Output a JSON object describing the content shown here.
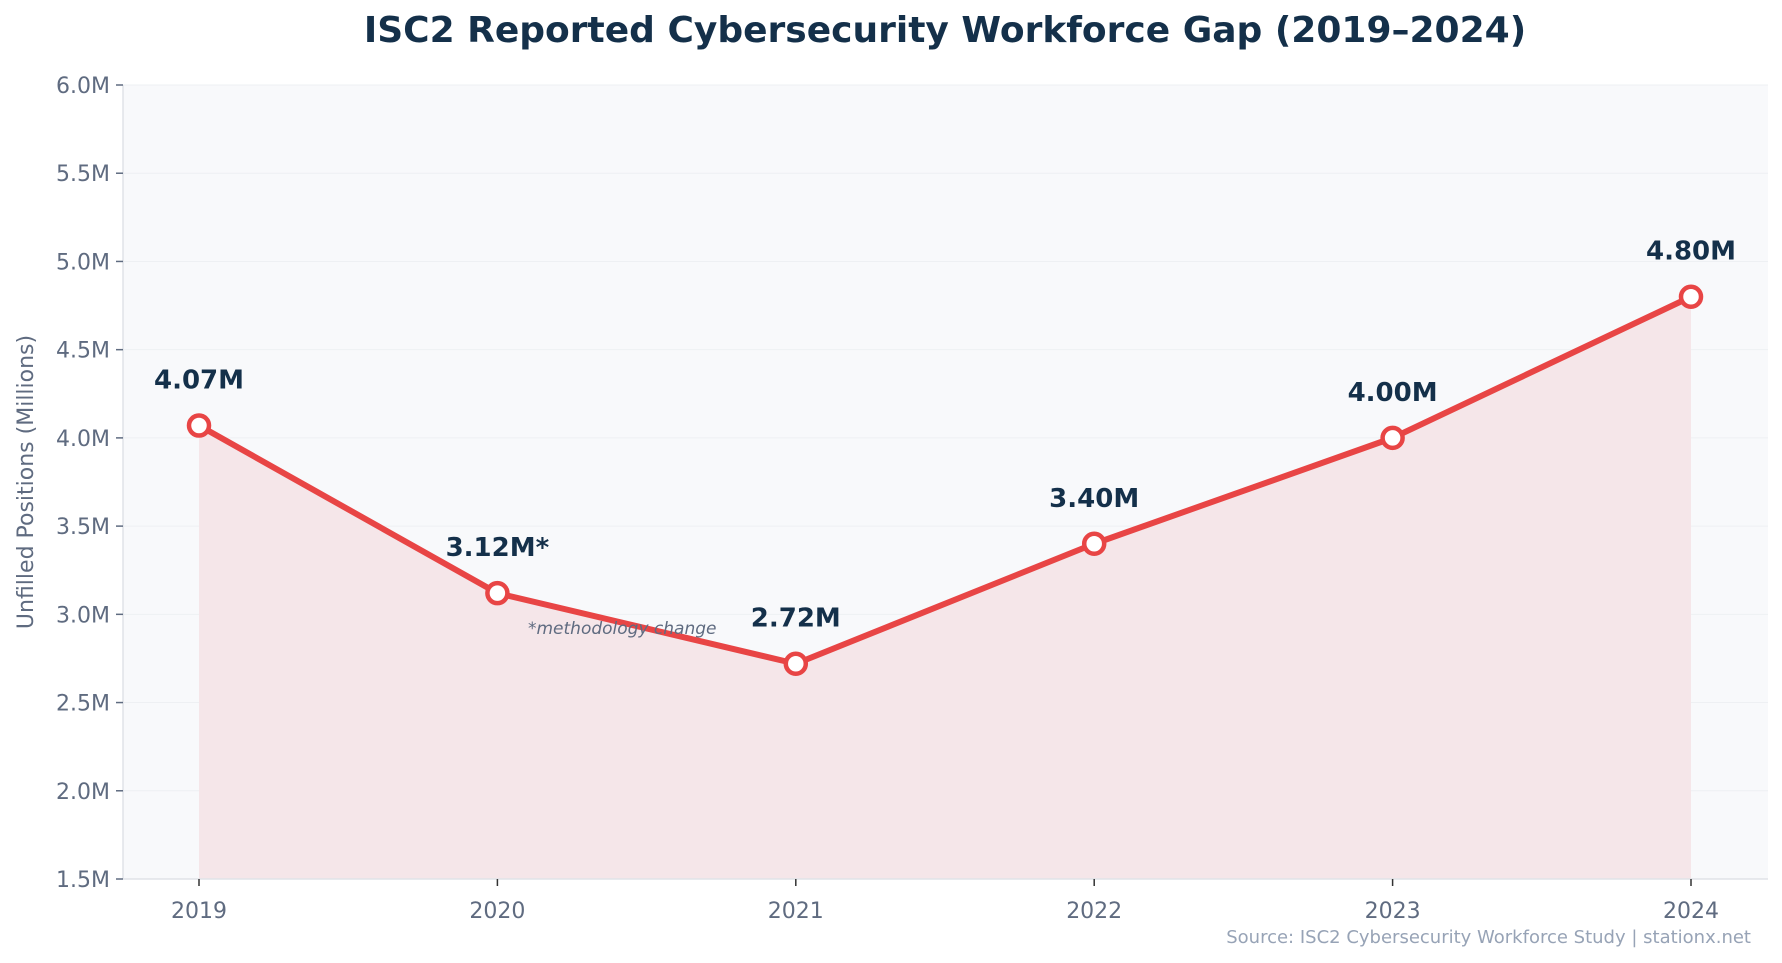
{
  "chart_data": {
    "type": "line",
    "title": "ISC2 Reported Cybersecurity Workforce Gap (2019–2024)",
    "xlabel": "",
    "ylabel": "Unfilled Positions (Millions)",
    "categories": [
      "2019",
      "2020",
      "2021",
      "2022",
      "2023",
      "2024"
    ],
    "values": [
      4.07,
      3.12,
      2.72,
      3.4,
      4.0,
      4.8
    ],
    "data_labels": [
      "4.07M",
      "3.12M*",
      "2.72M",
      "3.40M",
      "4.00M",
      "4.80M"
    ],
    "ylim": [
      1.5,
      6.0
    ],
    "yticks": [
      1.5,
      2.0,
      2.5,
      3.0,
      3.5,
      4.0,
      4.5,
      5.0,
      5.5,
      6.0
    ],
    "ytick_labels": [
      "1.5M",
      "2.0M",
      "2.5M",
      "3.0M",
      "3.5M",
      "4.0M",
      "4.5M",
      "5.0M",
      "5.5M",
      "6.0M"
    ],
    "grid": true,
    "area_fill": true,
    "annotation": "*methodology change",
    "source": "Source: ISC2 Cybersecurity Workforce Study | stationx.net",
    "colors": {
      "line": "#e84545",
      "fill": "#f5e6e9",
      "title": "#14304a",
      "plot_bg": "#f8f9fb",
      "tick_text": "#5f6b80"
    }
  }
}
